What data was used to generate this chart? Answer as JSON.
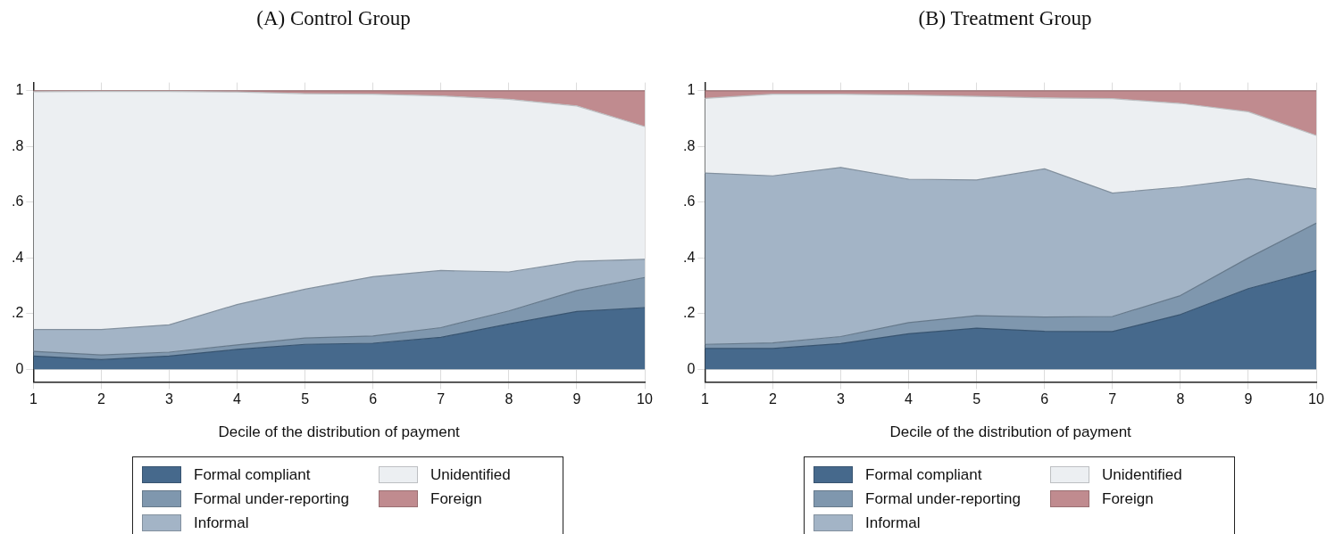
{
  "chart_data": [
    {
      "type": "area",
      "title": "(A) Control Group",
      "xlabel": "Decile of the distribution of payment",
      "categories": [
        "1",
        "2",
        "3",
        "4",
        "5",
        "6",
        "7",
        "8",
        "9",
        "10"
      ],
      "stacked": true,
      "ylim": [
        -0.045,
        1.03
      ],
      "yticks": [
        {
          "value": 0,
          "label": "0"
        },
        {
          "value": 0.2,
          "label": ".2"
        },
        {
          "value": 0.4,
          "label": ".4"
        },
        {
          "value": 0.6,
          "label": ".6"
        },
        {
          "value": 0.8,
          "label": ".8"
        },
        {
          "value": 1,
          "label": "1"
        }
      ],
      "grid": true,
      "legend": "bottom",
      "marker": "none",
      "series": [
        {
          "name": "Formal compliant",
          "color": "#46698c",
          "values": [
            0.048,
            0.035,
            0.048,
            0.072,
            0.09,
            0.094,
            0.115,
            0.163,
            0.208,
            0.222
          ]
        },
        {
          "name": "Formal under-reporting",
          "color": "#7f97ae",
          "values": [
            0.017,
            0.017,
            0.014,
            0.016,
            0.023,
            0.026,
            0.035,
            0.047,
            0.075,
            0.108
          ]
        },
        {
          "name": "Informal",
          "color": "#a3b4c6",
          "values": [
            0.078,
            0.091,
            0.098,
            0.145,
            0.175,
            0.213,
            0.205,
            0.14,
            0.105,
            0.065
          ]
        },
        {
          "name": "Unidentified",
          "color": "#eceff2",
          "values": [
            0.854,
            0.855,
            0.838,
            0.763,
            0.702,
            0.655,
            0.627,
            0.62,
            0.558,
            0.477
          ]
        },
        {
          "name": "Foreign",
          "color": "#c08b8f",
          "values": [
            0.003,
            0.002,
            0.002,
            0.004,
            0.01,
            0.012,
            0.018,
            0.03,
            0.054,
            0.128
          ]
        }
      ]
    },
    {
      "type": "area",
      "title": "(B) Treatment Group",
      "xlabel": "Decile of the distribution of payment",
      "categories": [
        "1",
        "2",
        "3",
        "4",
        "5",
        "6",
        "7",
        "8",
        "9",
        "10"
      ],
      "stacked": true,
      "ylim": [
        -0.045,
        1.03
      ],
      "yticks": [
        {
          "value": 0,
          "label": "0"
        },
        {
          "value": 0.2,
          "label": ".2"
        },
        {
          "value": 0.4,
          "label": ".4"
        },
        {
          "value": 0.6,
          "label": ".6"
        },
        {
          "value": 0.8,
          "label": ".8"
        },
        {
          "value": 1,
          "label": "1"
        }
      ],
      "grid": true,
      "legend": "bottom",
      "marker": "none",
      "series": [
        {
          "name": "Formal compliant",
          "color": "#46698c",
          "values": [
            0.075,
            0.075,
            0.093,
            0.128,
            0.148,
            0.137,
            0.136,
            0.197,
            0.29,
            0.355
          ]
        },
        {
          "name": "Formal under-reporting",
          "color": "#7f97ae",
          "values": [
            0.015,
            0.02,
            0.025,
            0.04,
            0.045,
            0.051,
            0.054,
            0.068,
            0.11,
            0.17
          ]
        },
        {
          "name": "Informal",
          "color": "#a3b4c6",
          "values": [
            0.615,
            0.6,
            0.607,
            0.515,
            0.487,
            0.532,
            0.443,
            0.39,
            0.285,
            0.123
          ]
        },
        {
          "name": "Unidentified",
          "color": "#eceff2",
          "values": [
            0.268,
            0.293,
            0.263,
            0.302,
            0.3,
            0.255,
            0.339,
            0.3,
            0.24,
            0.192
          ]
        },
        {
          "name": "Foreign",
          "color": "#c08b8f",
          "values": [
            0.027,
            0.012,
            0.012,
            0.015,
            0.02,
            0.025,
            0.028,
            0.045,
            0.075,
            0.16
          ]
        }
      ]
    }
  ]
}
